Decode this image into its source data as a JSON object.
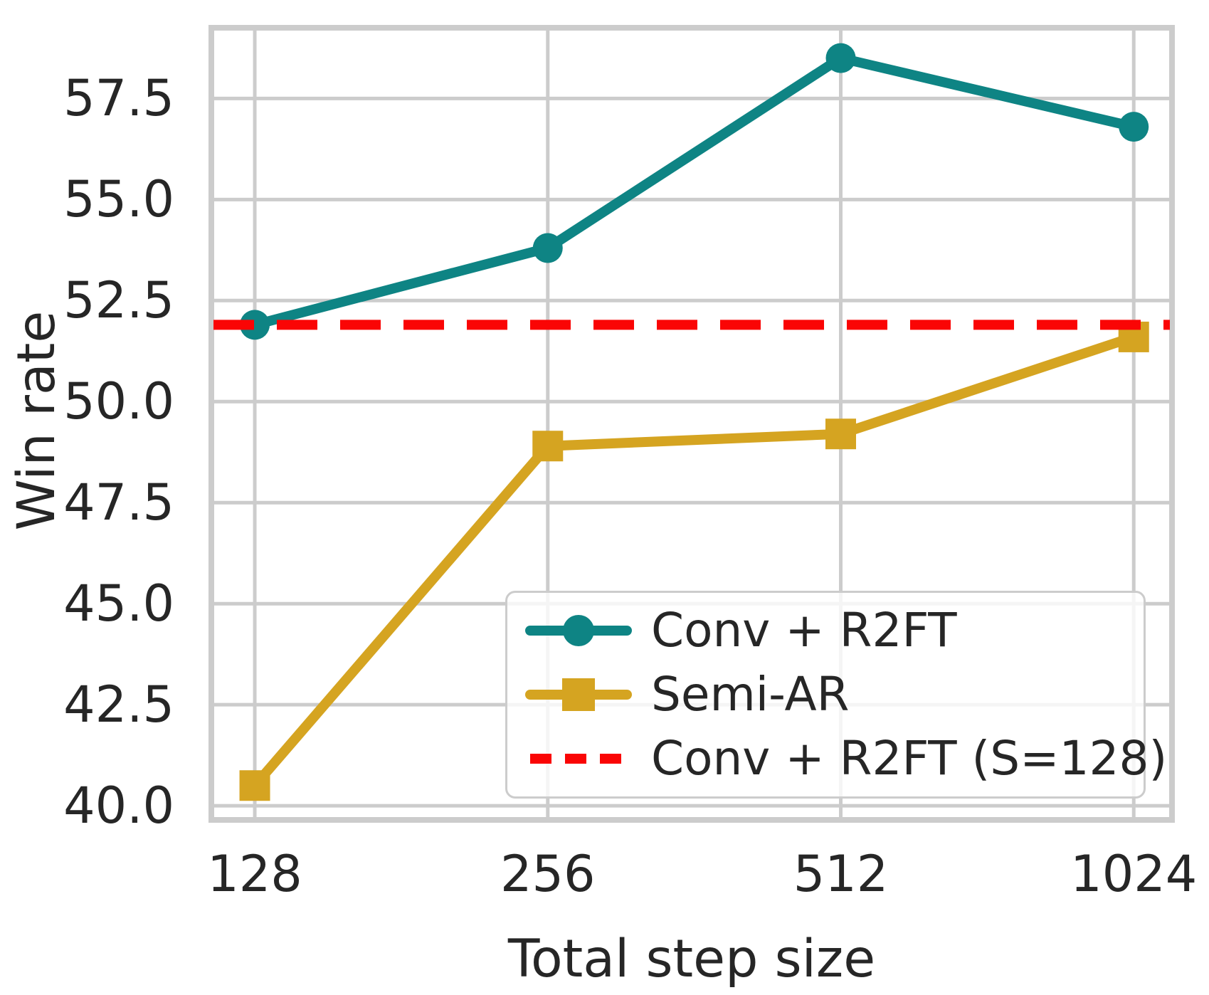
{
  "chart_data": {
    "type": "line",
    "x_scale": "log2",
    "x": [
      128,
      256,
      512,
      1024
    ],
    "x_tick_labels": [
      "128",
      "256",
      "512",
      "1024"
    ],
    "y_ticks": [
      40.0,
      42.5,
      45.0,
      47.5,
      50.0,
      52.5,
      55.0,
      57.5
    ],
    "y_tick_labels": [
      "40.0",
      "42.5",
      "45.0",
      "47.5",
      "50.0",
      "52.5",
      "55.0",
      "57.5"
    ],
    "xlabel": "Total step size",
    "ylabel": "Win rate",
    "xlim": [
      115.5,
      1121
    ],
    "ylim": [
      39.65,
      59.25
    ],
    "grid": true,
    "series": [
      {
        "name": "Conv + R2FT",
        "values": [
          51.9,
          53.8,
          58.5,
          56.8
        ],
        "color": "#0e8484",
        "marker": "circle",
        "line_style": "solid"
      },
      {
        "name": "Semi-AR",
        "values": [
          40.5,
          48.9,
          49.2,
          51.6
        ],
        "color": "#d5a421",
        "marker": "square",
        "line_style": "solid"
      }
    ],
    "reference_line": {
      "name": "Conv + R2FT (S=128)",
      "value": 51.9,
      "color": "#fa0505",
      "line_style": "dashed"
    },
    "legend": {
      "position": "lower right"
    },
    "style": {
      "grid_color": "#cccccc",
      "spine_color": "#cccccc",
      "text_color": "#262626",
      "background": "#ffffff"
    }
  }
}
